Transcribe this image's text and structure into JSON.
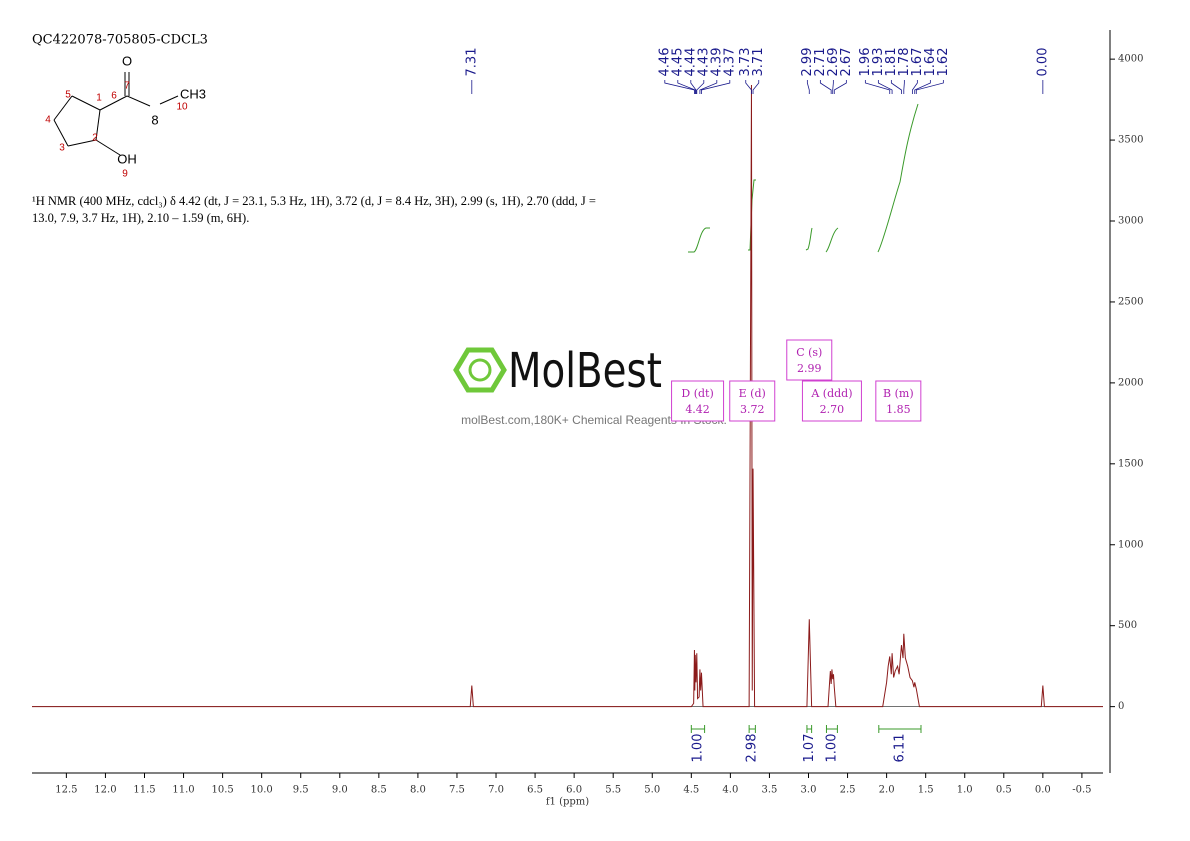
{
  "chart_data": {
    "type": "nmr",
    "title": "QC422078-705805-CDCL3",
    "description": "¹H NMR (400 MHz, cdcl₃) δ 4.42 (dt, J = 23.1, 5.3 Hz, 1H), 3.72 (d, J = 8.4 Hz, 3H), 2.99 (s, 1H), 2.70 (ddd, J = 13.0, 7.9, 3.7 Hz, 1H), 2.10 – 1.59 (m, 6H).",
    "x_label": "f1 (ppm)",
    "xlim": [
      12.94,
      -0.77
    ],
    "ylim": [
      -410,
      4180
    ],
    "xticks": [
      12.5,
      {
        "value": 12,
        "label": "12.0"
      },
      11.5,
      {
        "value": 11,
        "label": "11.0"
      },
      10.5,
      {
        "value": 10,
        "label": "10.0"
      },
      9.5,
      {
        "value": 9,
        "label": "9.0"
      },
      8.5,
      {
        "value": 8,
        "label": "8.0"
      },
      7.5,
      {
        "value": 7,
        "label": "7.0"
      },
      6.5,
      {
        "value": 6,
        "label": "6.0"
      },
      5.5,
      {
        "value": 5,
        "label": "5.0"
      },
      4.5,
      {
        "value": 4,
        "label": "4.0"
      },
      3.5,
      {
        "value": 3,
        "label": "3.0"
      },
      2.5,
      {
        "value": 2,
        "label": "2.0"
      },
      1.5,
      {
        "value": 1,
        "label": "1.0"
      },
      0.5,
      {
        "value": 0,
        "label": "0.0"
      },
      -0.5
    ],
    "yticks": [
      0,
      500,
      1000,
      1500,
      2000,
      2500,
      3000,
      3500,
      4000
    ],
    "series": [
      {
        "name": "spectrum",
        "color": "#8b1a1a",
        "x": [
          12.94,
          7.33,
          7.31,
          7.29,
          4.5,
          4.47,
          4.46,
          4.455,
          4.45,
          4.44,
          4.43,
          4.42,
          4.4,
          4.39,
          4.38,
          4.37,
          4.35,
          3.76,
          3.73,
          3.72,
          3.71,
          3.69,
          3.02,
          2.99,
          2.96,
          2.75,
          2.73,
          2.72,
          2.71,
          2.7,
          2.69,
          2.68,
          2.67,
          2.65,
          2.05,
          2.0,
          1.98,
          1.96,
          1.94,
          1.93,
          1.91,
          1.89,
          1.86,
          1.84,
          1.81,
          1.79,
          1.78,
          1.76,
          1.73,
          1.7,
          1.67,
          1.65,
          1.64,
          1.62,
          1.58,
          0.02,
          0.0,
          -0.02,
          -0.77
        ],
        "values": [
          0,
          0,
          130,
          0,
          0,
          20,
          350,
          100,
          320,
          150,
          330,
          50,
          60,
          230,
          100,
          210,
          0,
          0,
          3840,
          100,
          1470,
          0,
          0,
          540,
          0,
          0,
          150,
          220,
          140,
          230,
          170,
          200,
          120,
          0,
          0,
          150,
          250,
          310,
          200,
          330,
          180,
          220,
          250,
          200,
          380,
          300,
          450,
          300,
          250,
          180,
          160,
          120,
          150,
          110,
          0,
          0,
          130,
          0,
          0
        ]
      }
    ],
    "peak_labels": [
      7.31,
      4.46,
      4.45,
      4.44,
      4.43,
      4.39,
      4.37,
      3.73,
      3.71,
      2.99,
      2.71,
      2.69,
      2.67,
      1.96,
      1.93,
      1.81,
      1.78,
      1.67,
      1.64,
      1.62,
      {
        "value": 0,
        "label": "0.00"
      }
    ],
    "integrals": [
      {
        "from": 4.5,
        "to": 4.33,
        "value": {
          "value": 1,
          "label": "1.00"
        }
      },
      {
        "from": 3.76,
        "to": 3.68,
        "value": 2.98
      },
      {
        "from": 3.02,
        "to": 2.96,
        "value": 1.07
      },
      {
        "from": 2.77,
        "to": 2.63,
        "value": {
          "value": 1,
          "label": "1.00"
        }
      },
      {
        "from": 2.1,
        "to": 1.56,
        "value": 6.11
      }
    ],
    "multiplets": [
      {
        "name": "D (dt)",
        "shift": 4.42
      },
      {
        "name": "E (d)",
        "shift": 3.72
      },
      {
        "name": "C (s)",
        "shift": 2.99
      },
      {
        "name": "A (ddd)",
        "shift": {
          "value": 2.7,
          "label": "2.70"
        }
      },
      {
        "name": "B (m)",
        "shift": 1.85
      }
    ],
    "structure_labels": [
      "O",
      "7",
      "6",
      "1",
      "2",
      "3",
      "4",
      "5",
      "8",
      "CH3",
      "10",
      "OH",
      "9"
    ],
    "watermark": {
      "logo": "MolBest",
      "caption": "molBest.com,180K+ Chemical Reagents In Stock."
    }
  }
}
